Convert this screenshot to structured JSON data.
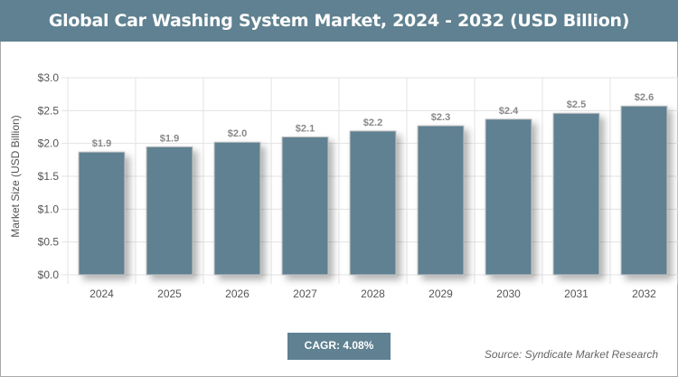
{
  "chart_data": {
    "type": "bar",
    "title": "Global Car Washing System Market, 2024 - 2032 (USD Billion)",
    "xlabel": "",
    "ylabel": "Market Size (USD Billion)",
    "categories": [
      "2024",
      "2025",
      "2026",
      "2027",
      "2028",
      "2029",
      "2030",
      "2031",
      "2032"
    ],
    "values": [
      1.87,
      1.95,
      2.02,
      2.1,
      2.19,
      2.27,
      2.37,
      2.46,
      2.57
    ],
    "data_labels": [
      "$1.9",
      "$1.9",
      "$2.0",
      "$2.1",
      "$2.2",
      "$2.3",
      "$2.4",
      "$2.5",
      "$2.6"
    ],
    "ylim": [
      0,
      3.0
    ],
    "yticks": [
      "$0.0",
      "$0.5",
      "$1.0",
      "$1.5",
      "$2.0",
      "$2.5",
      "$3.0"
    ],
    "grid": true,
    "bar_color": "#5f8191"
  },
  "cagr": "CAGR: 4.08%",
  "source": "Source: Syndicate Market Research"
}
